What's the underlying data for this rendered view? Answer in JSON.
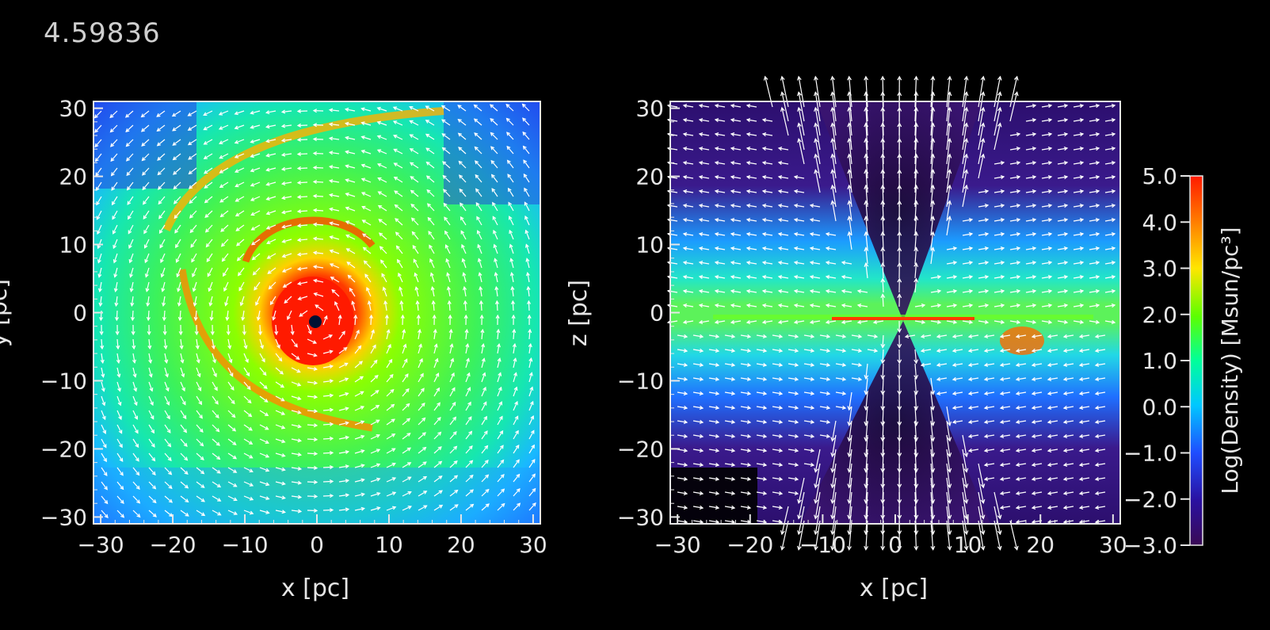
{
  "time_label": "4.59836",
  "colors": {
    "background": "#000000",
    "axis": "#e6e6e6",
    "vector": "#ffffff"
  },
  "chart_data": [
    {
      "type": "heatmap",
      "title": "",
      "xlabel": "x [pc]",
      "ylabel": "y [pc]",
      "xlim": [
        -31,
        31
      ],
      "ylim": [
        -31,
        31
      ],
      "x_ticks": [
        -30,
        -20,
        -10,
        0,
        10,
        20,
        30
      ],
      "y_ticks": [
        -30,
        -20,
        -10,
        0,
        10,
        20,
        30
      ],
      "x_tick_labels": [
        "−30",
        "−20",
        "−10",
        "0",
        "10",
        "20",
        "30"
      ],
      "y_tick_labels": [
        "−30",
        "−20",
        "−10",
        "0",
        "10",
        "20",
        "30"
      ],
      "field": "Log(Density) face-on, spiral disk with dense core at center",
      "vectors": "velocity field, rotating counter-clockwise"
    },
    {
      "type": "heatmap",
      "title": "",
      "xlabel": "x [pc]",
      "ylabel": "z [pc]",
      "xlim": [
        -31,
        31
      ],
      "ylim": [
        -31,
        31
      ],
      "x_ticks": [
        -30,
        -20,
        -10,
        0,
        10,
        20,
        30
      ],
      "y_ticks": [
        -30,
        -20,
        -10,
        0,
        10,
        20,
        30
      ],
      "x_tick_labels": [
        "−30",
        "−20",
        "−10",
        "0",
        "10",
        "20",
        "30"
      ],
      "y_tick_labels": [
        "−30",
        "−20",
        "−10",
        "0",
        "10",
        "20",
        "30"
      ],
      "field": "Log(Density) edge-on, thin disk with bipolar outflow cones",
      "vectors": "velocity field, strong vertical outflow"
    }
  ],
  "colorbar": {
    "label": "Log(Density) [Msun/pc³]",
    "min": -3.0,
    "max": 5.0,
    "ticks": [
      5.0,
      4.0,
      3.0,
      2.0,
      1.0,
      0.0,
      -1.0,
      -2.0,
      -3.0
    ],
    "tick_labels": [
      "5.0",
      "4.0",
      "3.0",
      "2.0",
      "1.0",
      "0.0",
      "−1.0",
      "−2.0",
      "−3.0"
    ],
    "stops": [
      "#3a0a55",
      "#2a10a0",
      "#1f4dff",
      "#00c8ff",
      "#00ff9a",
      "#5cff00",
      "#ffe600",
      "#ff7a00",
      "#ff1a00"
    ]
  }
}
